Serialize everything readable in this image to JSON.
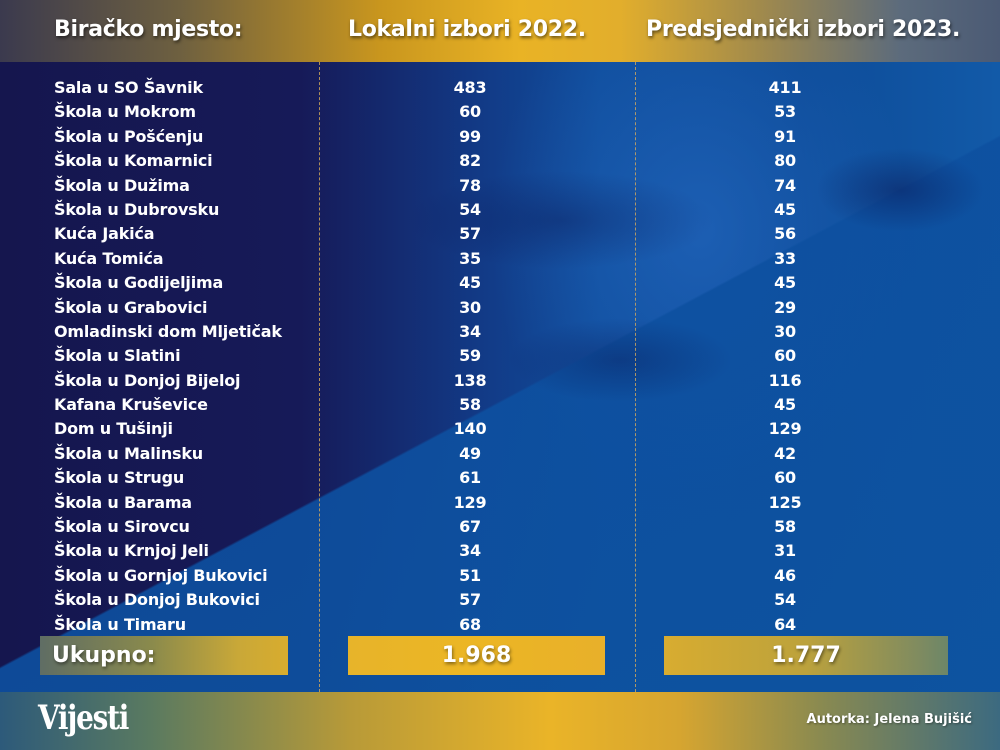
{
  "header": {
    "col_location": "Biračko mjesto:",
    "col_2022": "Lokalni izbori 2022.",
    "col_2023": "Predsjednički izbori 2023."
  },
  "rows": [
    {
      "name": "Sala u SO Šavnik",
      "v2022": "483",
      "v2023": "411"
    },
    {
      "name": "Škola u Mokrom",
      "v2022": "60",
      "v2023": "53"
    },
    {
      "name": "Škola u Pošćenju",
      "v2022": "99",
      "v2023": "91"
    },
    {
      "name": "Škola u Komarnici",
      "v2022": "82",
      "v2023": "80"
    },
    {
      "name": "Škola u Dužima",
      "v2022": "78",
      "v2023": "74"
    },
    {
      "name": "Škola u Dubrovsku",
      "v2022": "54",
      "v2023": "45"
    },
    {
      "name": "Kuća Jakića",
      "v2022": "57",
      "v2023": "56"
    },
    {
      "name": "Kuća Tomića",
      "v2022": "35",
      "v2023": "33"
    },
    {
      "name": "Škola u Godijeljima",
      "v2022": "45",
      "v2023": "45"
    },
    {
      "name": "Škola u Grabovici",
      "v2022": "30",
      "v2023": "29"
    },
    {
      "name": "Omladinski dom Mljetičak",
      "v2022": "34",
      "v2023": "30"
    },
    {
      "name": "Škola u Slatini",
      "v2022": "59",
      "v2023": "60"
    },
    {
      "name": "Škola u Donjoj Bijeloj",
      "v2022": "138",
      "v2023": "116"
    },
    {
      "name": "Kafana Kruševice",
      "v2022": "58",
      "v2023": "45"
    },
    {
      "name": "Dom u Tušinji",
      "v2022": "140",
      "v2023": "129"
    },
    {
      "name": "Škola u Malinsku",
      "v2022": "49",
      "v2023": "42"
    },
    {
      "name": "Škola u Strugu",
      "v2022": "61",
      "v2023": "60"
    },
    {
      "name": "Škola u Barama",
      "v2022": "129",
      "v2023": "125"
    },
    {
      "name": "Škola u Sirovcu",
      "v2022": "67",
      "v2023": "58"
    },
    {
      "name": "Škola u Krnjoj Jeli",
      "v2022": "34",
      "v2023": "31"
    },
    {
      "name": "Škola u Gornjoj Bukovici",
      "v2022": "51",
      "v2023": "46"
    },
    {
      "name": "Škola u Donjoj Bukovici",
      "v2022": "57",
      "v2023": "54"
    },
    {
      "name": "Škola u Timaru",
      "v2022": "68",
      "v2023": "64"
    }
  ],
  "totals": {
    "label": "Ukupno:",
    "v2022": "1.968",
    "v2023": "1.777"
  },
  "footer": {
    "logo": "Vijesti",
    "author": "Autorka: Jelena Bujišić"
  },
  "colors": {
    "gold": "#e9b325",
    "navy": "#161850",
    "blue": "#0d4b98",
    "text": "#ffffff"
  },
  "chart_data": {
    "type": "table",
    "title": "",
    "columns": [
      "Biračko mjesto:",
      "Lokalni izbori 2022.",
      "Predsjednički izbori 2023."
    ],
    "categories": [
      "Sala u SO Šavnik",
      "Škola u Mokrom",
      "Škola u Pošćenju",
      "Škola u Komarnici",
      "Škola u Dužima",
      "Škola u Dubrovsku",
      "Kuća Jakića",
      "Kuća Tomića",
      "Škola u Godijeljima",
      "Škola u Grabovici",
      "Omladinski dom Mljetičak",
      "Škola u Slatini",
      "Škola u Donjoj Bijeloj",
      "Kafana Kruševice",
      "Dom u Tušinji",
      "Škola u Malinsku",
      "Škola u Strugu",
      "Škola u Barama",
      "Škola u Sirovcu",
      "Škola u Krnjoj Jeli",
      "Škola u Gornjoj Bukovici",
      "Škola u Donjoj Bukovici",
      "Škola u Timaru"
    ],
    "series": [
      {
        "name": "Lokalni izbori 2022.",
        "values": [
          483,
          60,
          99,
          82,
          78,
          54,
          57,
          35,
          45,
          30,
          34,
          59,
          138,
          58,
          140,
          49,
          61,
          129,
          67,
          34,
          51,
          57,
          68
        ],
        "total": 1968
      },
      {
        "name": "Predsjednički izbori 2023.",
        "values": [
          411,
          53,
          91,
          80,
          74,
          45,
          56,
          33,
          45,
          29,
          30,
          60,
          116,
          45,
          129,
          42,
          60,
          125,
          58,
          31,
          46,
          54,
          64
        ],
        "total": 1777
      }
    ],
    "total_label": "Ukupno:"
  }
}
